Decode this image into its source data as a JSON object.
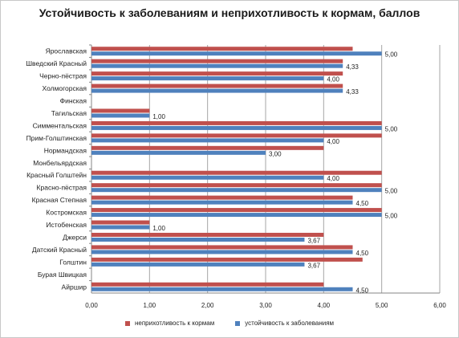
{
  "chart_data": {
    "type": "bar",
    "orientation": "horizontal",
    "title": "Устойчивость к заболеваниям и неприхотливость к кормам, баллов",
    "categories": [
      "Ярославская",
      "Шведский Красный",
      "Черно-пёстрая",
      "Холмогорская",
      "Финская",
      "Тагильская",
      "Симментальская",
      "Прим-Голштинская",
      "Нормандская",
      "Монбельярдская",
      "Красный Голштейн",
      "Красно-пёстрая",
      "Красная Степная",
      "Костромская",
      "Истобенская",
      "Джерси",
      "Датский Красный",
      "Голштин",
      "Бурая Швицкая",
      "Айршир"
    ],
    "series": [
      {
        "name": "неприхотливость к кормам",
        "color": "#c0504d",
        "values": [
          4.5,
          4.33,
          4.33,
          4.33,
          null,
          1.0,
          5.0,
          5.0,
          4.0,
          null,
          5.0,
          5.0,
          4.5,
          5.0,
          1.0,
          4.0,
          4.5,
          4.67,
          null,
          4.0
        ]
      },
      {
        "name": "устойчивость к заболеваниям",
        "color": "#4f81bd",
        "values": [
          5.0,
          4.33,
          4.0,
          4.33,
          null,
          1.0,
          5.0,
          4.0,
          3.0,
          null,
          4.0,
          5.0,
          4.5,
          5.0,
          1.0,
          3.67,
          4.5,
          3.67,
          null,
          4.5
        ]
      }
    ],
    "data_labels": [
      "5,00",
      "4,33",
      "4,00",
      "4,33",
      "",
      "1,00",
      "5,00",
      "4,00",
      "3,00",
      "",
      "4,00",
      "5,00",
      "4,50",
      "5,00",
      "1,00",
      "3,67",
      "4,50",
      "3,67",
      "",
      "4,50"
    ],
    "xlim": [
      0,
      6
    ],
    "xticks": [
      "0,00",
      "1,00",
      "2,00",
      "3,00",
      "4,00",
      "5,00",
      "6,00"
    ],
    "grid": true,
    "legend_position": "bottom"
  }
}
